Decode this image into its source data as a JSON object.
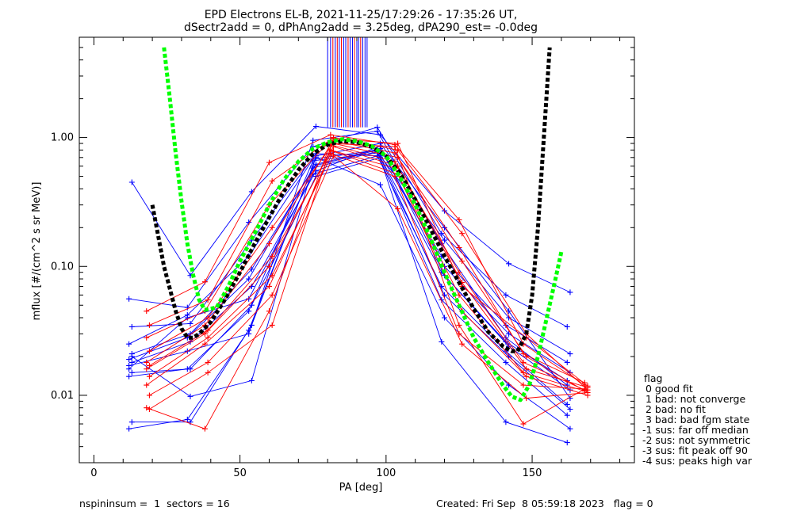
{
  "chart_data": {
    "type": "line",
    "title_line1": "EPD Electrons EL-B, 2021-11-25/17:29:26 - 17:35:26 UT,",
    "title_line2": "dSectr2add = 0, dPhAng2add = 3.25deg, dPA290_est=  -0.0deg",
    "xlabel": "PA [deg]",
    "ylabel": "mflux [#/(cm^2 s sr MeV)]",
    "xlim": [
      -5,
      185
    ],
    "ylim": [
      0.003,
      6.0
    ],
    "yscale": "log",
    "x_ticks": [
      0,
      50,
      100,
      150
    ],
    "x_tick_labels": [
      "0",
      "50",
      "100",
      "150"
    ],
    "y_ticks": [
      0.01,
      0.1,
      1.0
    ],
    "y_tick_labels": [
      "0.01",
      "0.10",
      "1.00"
    ],
    "colors": {
      "blue": "#0000ff",
      "red": "#ff0000",
      "green": "#00ff00",
      "black": "#000000"
    },
    "spikes": {
      "y_low": 1.2,
      "y_high": 6.0,
      "x_values": [
        80,
        81,
        81.8,
        82.6,
        83.3,
        84,
        84.7,
        85.5,
        86.2,
        87,
        87.7,
        88.5,
        89.2,
        90,
        90.6,
        91.3,
        92,
        92.8,
        93.5
      ],
      "colors": [
        "blue",
        "blue",
        "red",
        "blue",
        "red",
        "blue",
        "red",
        "blue",
        "blue",
        "red",
        "blue",
        "blue",
        "red",
        "blue",
        "blue",
        "red",
        "blue",
        "blue",
        "blue"
      ]
    },
    "series": [
      {
        "color": "blue",
        "x": [
          13,
          33,
          54,
          76,
          98,
          120,
          142,
          163
        ],
        "y": [
          0.45,
          0.085,
          0.38,
          1.22,
          1.05,
          0.27,
          0.105,
          0.063
        ]
      },
      {
        "color": "blue",
        "x": [
          12,
          32,
          53,
          75,
          97,
          119,
          141,
          162
        ],
        "y": [
          0.056,
          0.048,
          0.22,
          0.85,
          1.2,
          0.18,
          0.06,
          0.034
        ]
      },
      {
        "color": "blue",
        "x": [
          13,
          33,
          54,
          76,
          98,
          120,
          142,
          163
        ],
        "y": [
          0.034,
          0.036,
          0.16,
          0.75,
          0.72,
          0.16,
          0.04,
          0.021
        ]
      },
      {
        "color": "blue",
        "x": [
          12,
          32,
          53,
          75,
          97,
          119,
          141,
          162
        ],
        "y": [
          0.025,
          0.042,
          0.12,
          0.68,
          0.8,
          0.12,
          0.035,
          0.018
        ]
      },
      {
        "color": "blue",
        "x": [
          13,
          33,
          54,
          76,
          98,
          120,
          142,
          163
        ],
        "y": [
          0.021,
          0.03,
          0.095,
          0.62,
          0.82,
          0.1,
          0.03,
          0.015
        ]
      },
      {
        "color": "blue",
        "x": [
          12,
          32,
          53,
          75,
          97,
          119,
          141,
          162
        ],
        "y": [
          0.019,
          0.028,
          0.08,
          0.58,
          0.78,
          0.09,
          0.026,
          0.013
        ]
      },
      {
        "color": "blue",
        "x": [
          13,
          33,
          54,
          76,
          98,
          120,
          142,
          163
        ],
        "y": [
          0.018,
          0.026,
          0.07,
          0.55,
          0.86,
          0.085,
          0.024,
          0.011
        ]
      },
      {
        "color": "blue",
        "x": [
          12,
          32,
          53,
          75,
          97,
          119,
          141,
          162
        ],
        "y": [
          0.016,
          0.04,
          0.056,
          0.52,
          0.72,
          0.07,
          0.022,
          0.0085
        ]
      },
      {
        "color": "blue",
        "x": [
          13,
          33,
          54,
          76,
          98,
          120,
          142,
          163
        ],
        "y": [
          0.015,
          0.016,
          0.05,
          0.5,
          0.7,
          0.06,
          0.02,
          0.0078
        ]
      },
      {
        "color": "blue",
        "x": [
          12,
          32,
          53,
          75,
          97,
          119,
          141,
          162
        ],
        "y": [
          0.014,
          0.016,
          0.045,
          0.66,
          0.76,
          0.055,
          0.018,
          0.007
        ]
      },
      {
        "color": "blue",
        "x": [
          13,
          33,
          54,
          76,
          98,
          120,
          142,
          163
        ],
        "y": [
          0.0062,
          0.0062,
          0.035,
          0.7,
          0.43,
          0.04,
          0.012,
          0.0055
        ]
      },
      {
        "color": "blue",
        "x": [
          12,
          32,
          53,
          75,
          97,
          119,
          141,
          162
        ],
        "y": [
          0.0055,
          0.0065,
          0.032,
          0.6,
          0.8,
          0.026,
          0.0062,
          0.0043
        ]
      },
      {
        "color": "blue",
        "x": [
          13,
          33,
          54,
          76,
          98,
          120,
          142,
          163
        ],
        "y": [
          0.02,
          0.0098,
          0.013,
          0.72,
          0.9,
          0.2,
          0.045,
          0.0095
        ]
      },
      {
        "color": "blue",
        "x": [
          12,
          32,
          53,
          75,
          97,
          119,
          141,
          162
        ],
        "y": [
          0.017,
          0.022,
          0.03,
          0.95,
          1.12,
          0.15,
          0.028,
          0.012
        ]
      },
      {
        "color": "red",
        "x": [
          18,
          38,
          60,
          81,
          103,
          125,
          147,
          168
        ],
        "y": [
          0.045,
          0.076,
          0.64,
          1.05,
          0.88,
          0.23,
          0.025,
          0.012
        ]
      },
      {
        "color": "red",
        "x": [
          19,
          39,
          61,
          82,
          104,
          126,
          148,
          169
        ],
        "y": [
          0.035,
          0.055,
          0.46,
          1.0,
          0.8,
          0.18,
          0.03,
          0.011
        ]
      },
      {
        "color": "red",
        "x": [
          18,
          38,
          60,
          81,
          103,
          125,
          147,
          168
        ],
        "y": [
          0.028,
          0.045,
          0.3,
          0.95,
          0.76,
          0.14,
          0.021,
          0.0125
        ]
      },
      {
        "color": "red",
        "x": [
          19,
          39,
          61,
          82,
          104,
          126,
          148,
          169
        ],
        "y": [
          0.022,
          0.04,
          0.2,
          0.9,
          0.7,
          0.11,
          0.02,
          0.0105
        ]
      },
      {
        "color": "red",
        "x": [
          18,
          38,
          60,
          81,
          103,
          125,
          147,
          168
        ],
        "y": [
          0.018,
          0.035,
          0.15,
          0.88,
          0.65,
          0.09,
          0.018,
          0.011
        ]
      },
      {
        "color": "red",
        "x": [
          19,
          39,
          61,
          82,
          104,
          126,
          148,
          169
        ],
        "y": [
          0.017,
          0.032,
          0.12,
          0.85,
          0.6,
          0.075,
          0.016,
          0.0115
        ]
      },
      {
        "color": "red",
        "x": [
          18,
          38,
          60,
          81,
          103,
          125,
          147,
          168
        ],
        "y": [
          0.016,
          0.03,
          0.1,
          0.8,
          0.58,
          0.06,
          0.015,
          0.0108
        ]
      },
      {
        "color": "red",
        "x": [
          19,
          39,
          61,
          82,
          104,
          126,
          148,
          169
        ],
        "y": [
          0.014,
          0.028,
          0.085,
          0.78,
          0.52,
          0.045,
          0.014,
          0.01
        ]
      },
      {
        "color": "red",
        "x": [
          18,
          38,
          60,
          81,
          103,
          125,
          147,
          168
        ],
        "y": [
          0.012,
          0.025,
          0.07,
          0.75,
          0.5,
          0.03,
          0.012,
          0.0112
        ]
      },
      {
        "color": "red",
        "x": [
          19,
          39,
          61,
          82,
          104,
          126,
          148,
          169
        ],
        "y": [
          0.01,
          0.018,
          0.06,
          0.72,
          0.28,
          0.025,
          0.0095,
          0.0105
        ]
      },
      {
        "color": "red",
        "x": [
          18,
          38,
          60,
          81,
          103,
          125,
          147,
          168
        ],
        "y": [
          0.008,
          0.0055,
          0.045,
          0.9,
          0.85,
          0.035,
          0.006,
          0.0112
        ]
      },
      {
        "color": "red",
        "x": [
          19,
          39,
          61,
          82,
          104,
          126,
          148,
          169
        ],
        "y": [
          0.0078,
          0.015,
          0.035,
          0.98,
          0.9,
          0.07,
          0.028,
          0.0118
        ]
      }
    ],
    "fit_black": {
      "color": "black",
      "x": [
        20,
        24,
        28,
        30,
        32,
        34,
        36,
        40,
        45,
        50,
        55,
        60,
        65,
        70,
        75,
        80,
        85,
        90,
        95,
        100,
        105,
        110,
        115,
        120,
        125,
        130,
        135,
        140,
        143,
        145,
        148,
        150,
        152,
        154,
        156
      ],
      "y": [
        0.3,
        0.1,
        0.045,
        0.033,
        0.028,
        0.028,
        0.03,
        0.037,
        0.056,
        0.09,
        0.15,
        0.24,
        0.38,
        0.56,
        0.75,
        0.88,
        0.94,
        0.92,
        0.85,
        0.72,
        0.52,
        0.33,
        0.2,
        0.12,
        0.075,
        0.047,
        0.031,
        0.024,
        0.022,
        0.022,
        0.03,
        0.06,
        0.2,
        1.0,
        5.0
      ]
    },
    "fit_green": {
      "color": "green",
      "x": [
        24,
        26,
        28,
        30,
        32,
        34,
        36,
        38,
        42,
        46,
        50,
        55,
        60,
        65,
        70,
        75,
        80,
        85,
        90,
        95,
        100,
        105,
        110,
        115,
        120,
        125,
        130,
        135,
        140,
        143,
        146,
        149,
        152,
        155,
        158,
        160
      ],
      "y": [
        5.0,
        2.0,
        0.75,
        0.32,
        0.15,
        0.085,
        0.055,
        0.046,
        0.048,
        0.07,
        0.11,
        0.18,
        0.3,
        0.47,
        0.65,
        0.82,
        0.92,
        0.97,
        0.94,
        0.86,
        0.72,
        0.48,
        0.3,
        0.17,
        0.09,
        0.05,
        0.028,
        0.018,
        0.012,
        0.0098,
        0.0092,
        0.012,
        0.02,
        0.04,
        0.08,
        0.13
      ]
    },
    "legend": {
      "title": "flag",
      "entries": [
        " 0 good fit",
        " 1 bad: not converge",
        " 2 bad: no fit",
        " 3 bad: bad fgm state",
        "-1 sus: far off median",
        "-2 sus: not symmetric",
        "-3 sus: fit peak off 90",
        "-4 sus: peaks high var"
      ]
    },
    "footer": {
      "left": "nspininsum =  1  sectors = 16",
      "right": "Created: Fri Sep  8 05:59:18 2023   flag = 0"
    }
  }
}
